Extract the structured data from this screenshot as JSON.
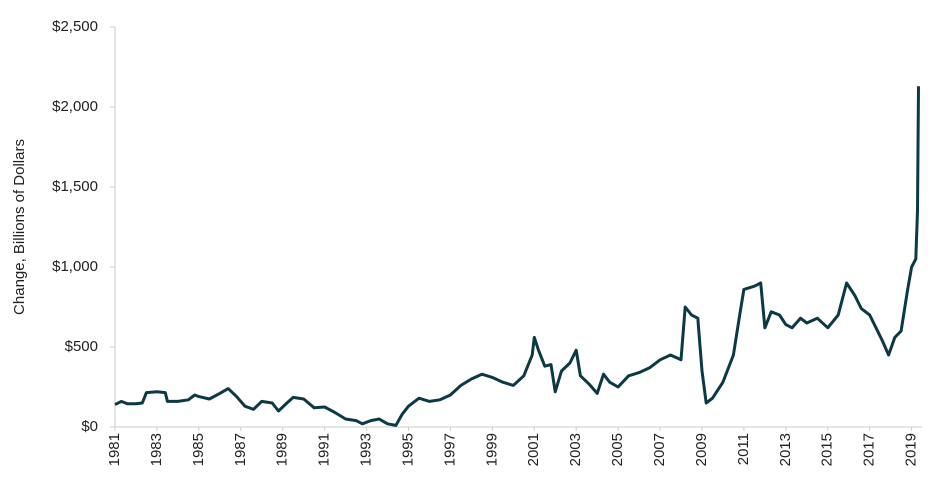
{
  "chart_data": {
    "type": "line",
    "y_label": "Change, Billions of Dollars",
    "xlim": [
      1981,
      2019.4
    ],
    "xticks": [
      1981,
      1983,
      1985,
      1987,
      1989,
      1991,
      1993,
      1995,
      1997,
      1999,
      2001,
      2003,
      2005,
      2007,
      2009,
      2011,
      2013,
      2015,
      2017,
      2019
    ],
    "ylim": [
      0,
      2500
    ],
    "yticks": [
      {
        "value": 0,
        "label": "$0"
      },
      {
        "value": 500,
        "label": "$500"
      },
      {
        "value": 1000,
        "label": "$1,000"
      },
      {
        "value": 1500,
        "label": "$1,500"
      },
      {
        "value": 2000,
        "label": "$2,000"
      },
      {
        "value": 2500,
        "label": "$2,500"
      }
    ],
    "grid": false,
    "series": [
      {
        "color": "#0b3a45",
        "x": [
          1981.0,
          1981.3,
          1981.6,
          1982.0,
          1982.3,
          1982.5,
          1983.0,
          1983.4,
          1983.5,
          1984.0,
          1984.5,
          1984.8,
          1985.0,
          1985.5,
          1986.0,
          1986.4,
          1986.8,
          1987.2,
          1987.6,
          1988.0,
          1988.5,
          1988.8,
          1989.2,
          1989.5,
          1990.0,
          1990.5,
          1991.0,
          1991.5,
          1992.0,
          1992.5,
          1992.8,
          1993.2,
          1993.6,
          1994.0,
          1994.4,
          1994.7,
          1995.0,
          1995.5,
          1996.0,
          1996.5,
          1997.0,
          1997.5,
          1998.0,
          1998.5,
          1999.0,
          1999.5,
          2000.0,
          2000.5,
          2000.9,
          2001.0,
          2001.2,
          2001.5,
          2001.8,
          2002.0,
          2002.3,
          2002.7,
          2003.0,
          2003.2,
          2003.6,
          2004.0,
          2004.3,
          2004.6,
          2005.0,
          2005.5,
          2006.0,
          2006.5,
          2007.0,
          2007.5,
          2008.0,
          2008.2,
          2008.5,
          2008.8,
          2009.0,
          2009.2,
          2009.5,
          2010.0,
          2010.5,
          2010.8,
          2011.0,
          2011.5,
          2011.8,
          2012.0,
          2012.3,
          2012.7,
          2013.0,
          2013.3,
          2013.7,
          2014.0,
          2014.5,
          2015.0,
          2015.5,
          2015.9,
          2016.3,
          2016.6,
          2017.0,
          2017.3,
          2017.6,
          2017.9,
          2018.2,
          2018.5,
          2018.8,
          2019.0,
          2019.2,
          2019.28,
          2019.33
        ],
        "values": [
          140,
          160,
          145,
          145,
          150,
          215,
          220,
          215,
          160,
          160,
          170,
          200,
          190,
          175,
          210,
          240,
          190,
          130,
          110,
          160,
          150,
          100,
          150,
          185,
          175,
          120,
          125,
          90,
          50,
          40,
          20,
          40,
          50,
          20,
          10,
          80,
          130,
          180,
          160,
          170,
          200,
          260,
          300,
          330,
          310,
          280,
          260,
          320,
          450,
          560,
          480,
          380,
          390,
          220,
          350,
          400,
          480,
          320,
          270,
          210,
          330,
          280,
          250,
          320,
          340,
          370,
          420,
          450,
          420,
          750,
          700,
          680,
          350,
          150,
          180,
          280,
          450,
          700,
          860,
          880,
          900,
          620,
          720,
          700,
          640,
          620,
          680,
          650,
          680,
          620,
          700,
          900,
          820,
          740,
          700,
          620,
          540,
          450,
          560,
          600,
          850,
          1000,
          1050,
          1350,
          2130
        ]
      }
    ]
  }
}
